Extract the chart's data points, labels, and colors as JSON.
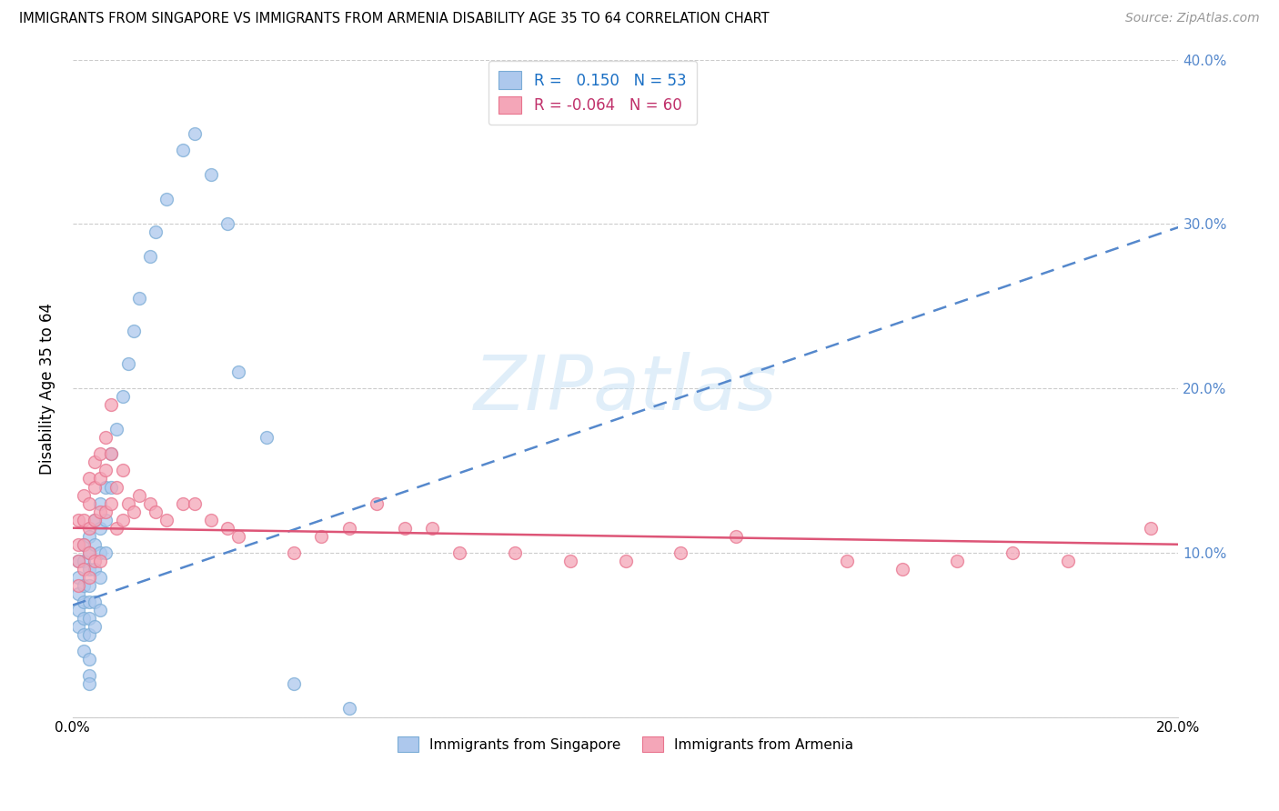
{
  "title": "IMMIGRANTS FROM SINGAPORE VS IMMIGRANTS FROM ARMENIA DISABILITY AGE 35 TO 64 CORRELATION CHART",
  "source": "Source: ZipAtlas.com",
  "ylabel": "Disability Age 35 to 64",
  "xlim": [
    0.0,
    0.2
  ],
  "ylim": [
    0.0,
    0.4
  ],
  "xticks": [
    0.0,
    0.05,
    0.1,
    0.15,
    0.2
  ],
  "xticklabels": [
    "0.0%",
    "",
    "",
    "",
    "20.0%"
  ],
  "yticks_left": [
    0.0,
    0.1,
    0.2,
    0.3,
    0.4
  ],
  "yticks_right": [
    0.1,
    0.2,
    0.3,
    0.4
  ],
  "singapore_R": 0.15,
  "singapore_N": 53,
  "armenia_R": -0.064,
  "armenia_N": 60,
  "singapore_color": "#adc8ed",
  "armenia_color": "#f4a6b8",
  "singapore_edge_color": "#7aacd6",
  "armenia_edge_color": "#e8748e",
  "singapore_line_color": "#5588cc",
  "armenia_line_color": "#dd5577",
  "right_axis_label_color": "#5588cc",
  "watermark_text": "ZIPatlas",
  "watermark_color": "#cce4f5",
  "sg_trend_intercept": 0.068,
  "sg_trend_slope": 1.15,
  "ar_trend_intercept": 0.115,
  "ar_trend_slope": -0.05,
  "singapore_points_x": [
    0.001,
    0.001,
    0.001,
    0.001,
    0.001,
    0.002,
    0.002,
    0.002,
    0.002,
    0.002,
    0.002,
    0.002,
    0.003,
    0.003,
    0.003,
    0.003,
    0.003,
    0.003,
    0.003,
    0.003,
    0.003,
    0.003,
    0.004,
    0.004,
    0.004,
    0.004,
    0.004,
    0.005,
    0.005,
    0.005,
    0.005,
    0.005,
    0.006,
    0.006,
    0.006,
    0.007,
    0.007,
    0.008,
    0.009,
    0.01,
    0.011,
    0.012,
    0.014,
    0.015,
    0.017,
    0.02,
    0.022,
    0.025,
    0.028,
    0.03,
    0.035,
    0.04,
    0.05
  ],
  "singapore_points_y": [
    0.095,
    0.085,
    0.075,
    0.065,
    0.055,
    0.105,
    0.095,
    0.08,
    0.07,
    0.06,
    0.05,
    0.04,
    0.11,
    0.1,
    0.09,
    0.08,
    0.07,
    0.06,
    0.05,
    0.035,
    0.025,
    0.02,
    0.12,
    0.105,
    0.09,
    0.07,
    0.055,
    0.13,
    0.115,
    0.1,
    0.085,
    0.065,
    0.14,
    0.12,
    0.1,
    0.16,
    0.14,
    0.175,
    0.195,
    0.215,
    0.235,
    0.255,
    0.28,
    0.295,
    0.315,
    0.345,
    0.355,
    0.33,
    0.3,
    0.21,
    0.17,
    0.02,
    0.005
  ],
  "armenia_points_x": [
    0.001,
    0.001,
    0.001,
    0.001,
    0.002,
    0.002,
    0.002,
    0.002,
    0.003,
    0.003,
    0.003,
    0.003,
    0.003,
    0.004,
    0.004,
    0.004,
    0.004,
    0.005,
    0.005,
    0.005,
    0.005,
    0.006,
    0.006,
    0.006,
    0.007,
    0.007,
    0.007,
    0.008,
    0.008,
    0.009,
    0.009,
    0.01,
    0.011,
    0.012,
    0.014,
    0.015,
    0.017,
    0.02,
    0.022,
    0.025,
    0.028,
    0.03,
    0.04,
    0.045,
    0.05,
    0.055,
    0.06,
    0.065,
    0.07,
    0.08,
    0.09,
    0.1,
    0.11,
    0.12,
    0.14,
    0.15,
    0.16,
    0.17,
    0.18,
    0.195
  ],
  "armenia_points_y": [
    0.12,
    0.105,
    0.095,
    0.08,
    0.135,
    0.12,
    0.105,
    0.09,
    0.145,
    0.13,
    0.115,
    0.1,
    0.085,
    0.155,
    0.14,
    0.12,
    0.095,
    0.16,
    0.145,
    0.125,
    0.095,
    0.17,
    0.15,
    0.125,
    0.19,
    0.16,
    0.13,
    0.14,
    0.115,
    0.15,
    0.12,
    0.13,
    0.125,
    0.135,
    0.13,
    0.125,
    0.12,
    0.13,
    0.13,
    0.12,
    0.115,
    0.11,
    0.1,
    0.11,
    0.115,
    0.13,
    0.115,
    0.115,
    0.1,
    0.1,
    0.095,
    0.095,
    0.1,
    0.11,
    0.095,
    0.09,
    0.095,
    0.1,
    0.095,
    0.115
  ]
}
